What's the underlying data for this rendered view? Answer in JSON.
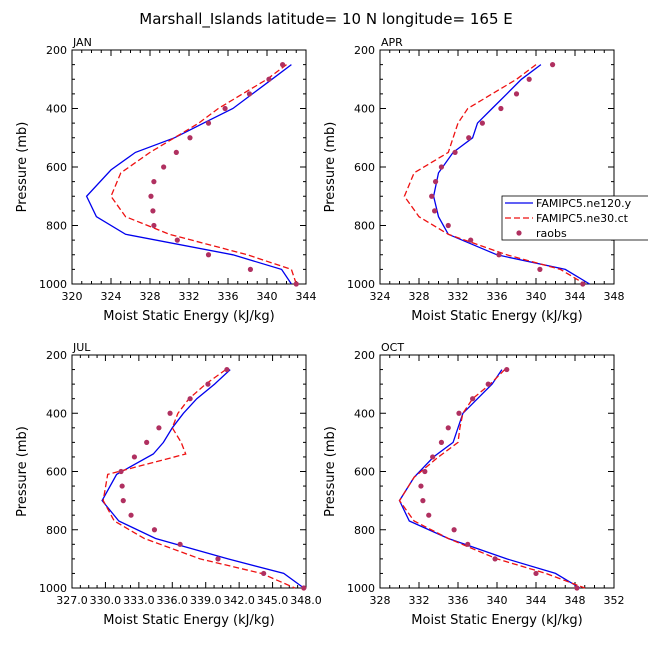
{
  "figure": {
    "title": "Marshall_Islands   latitude= 10 N longitude= 165 E"
  },
  "legend": {
    "entries": [
      "FAMIPC5.ne120.y",
      "FAMIPC5.ne30.ct",
      "raobs"
    ]
  },
  "colors": {
    "blue": "#0000ee",
    "red": "#ee1111",
    "dots": "#b03060"
  },
  "chart_data": [
    {
      "type": "line",
      "panel": "JAN",
      "xlabel": "Moist Static Energy (kJ/kg)",
      "ylabel": "Pressure (mb)",
      "xlim": [
        320,
        344
      ],
      "ylim": [
        1000,
        200
      ],
      "xticks": [
        320,
        324,
        328,
        332,
        336,
        340,
        344
      ],
      "xticklabels": [
        "320",
        "324",
        "328",
        "332",
        "336",
        "340",
        "344"
      ],
      "yticks": [
        200,
        400,
        600,
        800,
        1000
      ],
      "series": [
        {
          "name": "FAMIPC5.ne120.y",
          "style": "solid",
          "x": [
            342.5,
            340.5,
            338.5,
            336.5,
            333.5,
            330.5,
            326.5,
            324.0,
            321.5,
            322.5,
            325.5,
            336.5,
            341.5,
            342.5
          ],
          "y": [
            250,
            300,
            350,
            400,
            450,
            500,
            550,
            610,
            700,
            770,
            830,
            900,
            950,
            1000
          ]
        },
        {
          "name": "FAMIPC5.ne30.ct",
          "style": "dashed",
          "x": [
            342.0,
            340.0,
            337.5,
            335.0,
            333.0,
            330.5,
            328.0,
            325.0,
            324.0,
            325.5,
            330.0,
            338.0,
            342.5,
            343.0
          ],
          "y": [
            250,
            300,
            350,
            400,
            450,
            500,
            550,
            620,
            700,
            770,
            830,
            900,
            950,
            1000
          ]
        },
        {
          "name": "raobs",
          "style": "dots",
          "x": [
            341.6,
            340.2,
            338.2,
            335.7,
            334.0,
            332.1,
            330.7,
            329.4,
            328.4,
            328.1,
            328.3,
            328.4,
            330.8,
            334.0,
            338.3,
            343.0
          ],
          "y": [
            250,
            300,
            350,
            400,
            450,
            500,
            550,
            600,
            650,
            700,
            750,
            800,
            850,
            900,
            950,
            1000
          ]
        }
      ]
    },
    {
      "type": "line",
      "panel": "APR",
      "xlabel": "Moist Static Energy (kJ/kg)",
      "ylabel": "Pressure (mb)",
      "xlim": [
        324,
        348
      ],
      "ylim": [
        1000,
        200
      ],
      "xticks": [
        324,
        328,
        332,
        336,
        340,
        344,
        348
      ],
      "xticklabels": [
        "324",
        "328",
        "332",
        "336",
        "340",
        "344",
        "348"
      ],
      "yticks": [
        200,
        400,
        600,
        800,
        1000
      ],
      "series": [
        {
          "name": "FAMIPC5.ne120.y",
          "style": "solid",
          "x": [
            340.5,
            338.5,
            337.0,
            335.5,
            334.0,
            333.5,
            331.5,
            330.0,
            329.5,
            330.0,
            331.0,
            336.0,
            343.0,
            345.5
          ],
          "y": [
            250,
            300,
            350,
            400,
            450,
            500,
            550,
            620,
            700,
            770,
            830,
            900,
            950,
            1000
          ]
        },
        {
          "name": "FAMIPC5.ne30.ct",
          "style": "dashed",
          "x": [
            340.0,
            338.0,
            335.5,
            333.0,
            332.0,
            331.5,
            331.0,
            327.5,
            326.5,
            328.0,
            331.0,
            337.0,
            342.5,
            345.0
          ],
          "y": [
            250,
            300,
            350,
            400,
            450,
            500,
            550,
            620,
            700,
            770,
            830,
            900,
            950,
            1000
          ]
        },
        {
          "name": "raobs",
          "style": "dots",
          "x": [
            341.7,
            339.3,
            338.0,
            336.4,
            334.5,
            333.1,
            331.7,
            330.3,
            329.7,
            329.3,
            329.6,
            331.0,
            333.3,
            336.2,
            340.4,
            344.8
          ],
          "y": [
            250,
            300,
            350,
            400,
            450,
            500,
            550,
            600,
            650,
            700,
            750,
            800,
            850,
            900,
            950,
            1000
          ]
        }
      ]
    },
    {
      "type": "line",
      "panel": "JUL",
      "xlabel": "Moist Static Energy (kJ/kg)",
      "ylabel": "Pressure (mb)",
      "xlim": [
        327.0,
        348.0
      ],
      "ylim": [
        1000,
        200
      ],
      "xticks": [
        327.0,
        330.0,
        333.0,
        336.0,
        339.0,
        342.0,
        345.0,
        348.0
      ],
      "xticklabels": [
        "327.0",
        "330.0",
        "333.0",
        "336.0",
        "339.0",
        "342.0",
        "345.0",
        "348.0"
      ],
      "yticks": [
        200,
        400,
        600,
        800,
        1000
      ],
      "series": [
        {
          "name": "FAMIPC5.ne120.y",
          "style": "solid",
          "x": [
            341.2,
            339.8,
            338.2,
            337.0,
            336.0,
            335.2,
            334.3,
            331.0,
            329.7,
            331.2,
            334.5,
            341.0,
            346.0,
            347.8
          ],
          "y": [
            250,
            300,
            350,
            400,
            450,
            500,
            540,
            610,
            700,
            770,
            830,
            900,
            950,
            1000
          ]
        },
        {
          "name": "FAMIPC5.ne30.ct",
          "style": "dashed",
          "x": [
            340.8,
            339.0,
            337.5,
            336.5,
            336.0,
            336.8,
            337.2,
            330.2,
            329.8,
            330.8,
            333.5,
            338.5,
            344.0,
            347.0
          ],
          "y": [
            250,
            300,
            350,
            400,
            450,
            500,
            540,
            610,
            700,
            770,
            830,
            900,
            950,
            1000
          ]
        },
        {
          "name": "raobs",
          "style": "dots",
          "x": [
            340.9,
            339.2,
            337.6,
            335.8,
            334.8,
            333.7,
            332.6,
            331.4,
            331.5,
            331.6,
            332.3,
            334.4,
            336.7,
            340.1,
            344.2,
            347.8
          ],
          "y": [
            250,
            300,
            350,
            400,
            450,
            500,
            550,
            600,
            650,
            700,
            750,
            800,
            850,
            900,
            950,
            1000
          ]
        }
      ]
    },
    {
      "type": "line",
      "panel": "OCT",
      "xlabel": "Moist Static Energy (kJ/kg)",
      "ylabel": "Pressure (mb)",
      "xlim": [
        328,
        352
      ],
      "ylim": [
        1000,
        200
      ],
      "xticks": [
        328,
        332,
        336,
        340,
        344,
        348,
        352
      ],
      "xticklabels": [
        "328",
        "332",
        "336",
        "340",
        "344",
        "348",
        "352"
      ],
      "yticks": [
        200,
        400,
        600,
        800,
        1000
      ],
      "series": [
        {
          "name": "FAMIPC5.ne120.y",
          "style": "solid",
          "x": [
            340.5,
            339.5,
            338.0,
            336.5,
            336.0,
            335.5,
            333.5,
            331.5,
            330.0,
            331.0,
            335.0,
            341.0,
            346.0,
            348.5
          ],
          "y": [
            250,
            300,
            350,
            400,
            450,
            500,
            550,
            620,
            700,
            770,
            830,
            900,
            950,
            1000
          ]
        },
        {
          "name": "FAMIPC5.ne30.ct",
          "style": "dashed",
          "x": [
            340.8,
            339.3,
            337.5,
            336.5,
            336.2,
            336.0,
            334.0,
            331.5,
            330.0,
            331.5,
            335.0,
            340.0,
            345.0,
            349.0
          ],
          "y": [
            250,
            300,
            350,
            400,
            450,
            500,
            550,
            620,
            700,
            770,
            830,
            900,
            950,
            1000
          ]
        },
        {
          "name": "raobs",
          "style": "dots",
          "x": [
            341.0,
            339.1,
            337.5,
            336.1,
            335.0,
            334.3,
            333.4,
            332.6,
            332.2,
            332.4,
            333.0,
            335.6,
            337.0,
            339.8,
            344.0,
            348.2
          ],
          "y": [
            250,
            300,
            350,
            400,
            450,
            500,
            550,
            600,
            650,
            700,
            750,
            800,
            850,
            900,
            950,
            1000
          ]
        }
      ]
    }
  ]
}
